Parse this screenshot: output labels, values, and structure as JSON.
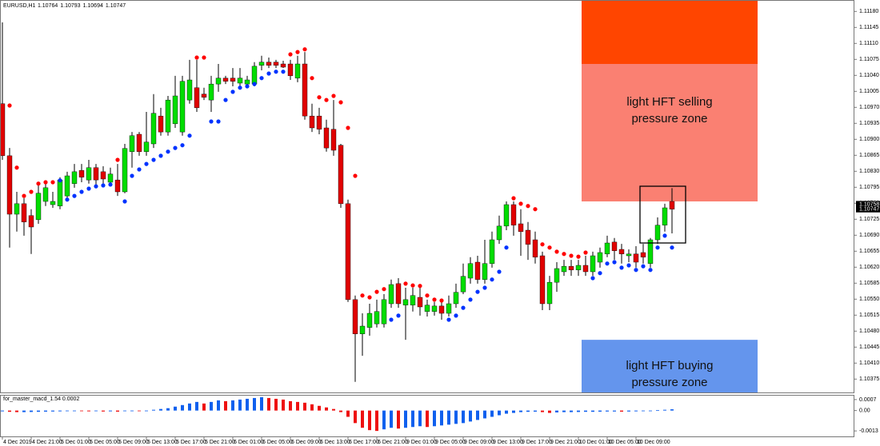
{
  "chart_data": {
    "type": "candlestick",
    "symbol": "EURUSD,H1",
    "ylim": [
      1.10344,
      1.11205
    ],
    "yticks": [
      {
        "value": 1.1118,
        "label": "1.11180"
      },
      1.11145,
      {
        "value": 1.1111,
        "label": "1.11110"
      },
      1.11075,
      {
        "value": 1.1104,
        "label": "1.11040"
      },
      1.11005,
      {
        "value": 1.1097,
        "label": "1.10970"
      },
      1.10935,
      {
        "value": 1.109,
        "label": "1.10900"
      },
      1.10865,
      {
        "value": 1.1083,
        "label": "1.10830"
      },
      1.10795,
      {
        "value": 1.1076,
        "label": "1.10760"
      },
      1.10725,
      {
        "value": 1.1069,
        "label": "1.10690"
      },
      1.10655,
      {
        "value": 1.1062,
        "label": "1.10620"
      },
      1.10585,
      {
        "value": 1.1055,
        "label": "1.10550"
      },
      1.10515,
      {
        "value": 1.1048,
        "label": "1.10480"
      },
      1.10445,
      {
        "value": 1.1041,
        "label": "1.10410"
      },
      1.10375
    ],
    "x_labels": [
      {
        "value": 0,
        "label": "4 Dec 2019"
      },
      {
        "value": 4,
        "label": "4 Dec 21:00"
      },
      {
        "value": 8,
        "label": "5 Dec 01:00"
      },
      {
        "value": 12,
        "label": "5 Dec 05:00"
      },
      {
        "value": 16,
        "label": "5 Dec 09:00"
      },
      {
        "value": 20,
        "label": "5 Dec 13:00"
      },
      {
        "value": 24,
        "label": "5 Dec 17:00"
      },
      {
        "value": 28,
        "label": "5 Dec 21:00"
      },
      {
        "value": 32,
        "label": "6 Dec 01:00"
      },
      {
        "value": 36,
        "label": "6 Dec 05:00"
      },
      {
        "value": 40,
        "label": "6 Dec 09:00"
      },
      {
        "value": 44,
        "label": "6 Dec 13:00"
      },
      {
        "value": 48,
        "label": "6 Dec 17:00"
      },
      {
        "value": 52,
        "label": "6 Dec 21:00"
      },
      {
        "value": 56,
        "label": "9 Dec 01:00"
      },
      {
        "value": 60,
        "label": "9 Dec 05:00"
      },
      {
        "value": 64,
        "label": "9 Dec 09:00"
      },
      {
        "value": 68,
        "label": "9 Dec 13:00"
      },
      {
        "value": 72,
        "label": "9 Dec 17:00"
      },
      {
        "value": 76,
        "label": "9 Dec 21:00"
      },
      {
        "value": 80,
        "label": "10 Dec 01:00"
      },
      {
        "value": 84,
        "label": "10 Dec 05:00"
      },
      {
        "value": 88,
        "label": "10 Dec 09:00"
      }
    ],
    "candles": {
      "up_color": "#00dd00",
      "down_color": "#e00000",
      "open": [
        1.10978,
        1.10864,
        1.10736,
        1.10759,
        1.10733,
        1.10724,
        1.10764,
        1.10757,
        1.10754,
        1.10776,
        1.10803,
        1.10832,
        1.10811,
        1.10838,
        1.10829,
        1.10806,
        1.10811,
        1.10785,
        1.10873,
        1.10911,
        1.10873,
        1.1089,
        1.10951,
        1.10916,
        1.10934,
        1.10916,
        1.10986,
        1.11013,
        1.10999,
        1.10986,
        1.11021,
        1.11034,
        1.11034,
        1.11023,
        1.11021,
        1.11021,
        1.11062,
        1.11069,
        1.11069,
        1.11065,
        1.11065,
        1.11034,
        1.11065,
        1.10951,
        1.10951,
        1.10925,
        1.10922,
        1.10887,
        1.10759,
        1.10549,
        1.10474,
        1.10488,
        1.10496,
        1.10496,
        1.1054,
        1.10584,
        1.10537,
        1.10537,
        1.10554,
        1.10523,
        1.10523,
        1.10535,
        1.10519,
        1.1054,
        1.10566,
        1.10596,
        1.10631,
        1.10593,
        1.10628,
        1.1068,
        1.1071,
        1.10757,
        1.10715,
        1.10701,
        1.1068,
        1.10645,
        1.1054,
        1.10587,
        1.1061,
        1.10622,
        1.10614,
        1.10624,
        1.1061,
        1.10631,
        1.10649,
        1.10675,
        1.10659,
        1.10645,
        1.10649,
        1.10652,
        1.10628,
        1.1068,
        1.10712,
        1.10764
      ],
      "high": [
        1.11156,
        1.10881,
        1.10785,
        1.10771,
        1.10747,
        1.10799,
        1.10806,
        1.10785,
        1.10817,
        1.10829,
        1.10846,
        1.10846,
        1.10855,
        1.10846,
        1.10841,
        1.10838,
        1.10846,
        1.1089,
        1.10916,
        1.10916,
        1.1096,
        1.10999,
        1.10969,
        1.10995,
        1.11039,
        1.11039,
        1.11074,
        1.11074,
        1.11013,
        1.11039,
        1.11065,
        1.11039,
        1.11056,
        1.11056,
        1.11039,
        1.11069,
        1.11083,
        1.11079,
        1.11074,
        1.11072,
        1.11074,
        1.11083,
        1.11091,
        1.10978,
        1.10969,
        1.10943,
        1.10986,
        1.1089,
        1.10768,
        1.10558,
        1.10519,
        1.1054,
        1.10549,
        1.10561,
        1.10593,
        1.10596,
        1.10575,
        1.10575,
        1.10575,
        1.10549,
        1.10544,
        1.10544,
        1.10558,
        1.10584,
        1.10628,
        1.10642,
        1.10645,
        1.1068,
        1.10698,
        1.10733,
        1.10764,
        1.10764,
        1.10747,
        1.10719,
        1.10698,
        1.10654,
        1.10601,
        1.10631,
        1.10636,
        1.10636,
        1.10636,
        1.10645,
        1.10654,
        1.10663,
        1.10689,
        1.10684,
        1.10671,
        1.10659,
        1.10666,
        1.10671,
        1.10684,
        1.10729,
        1.10759,
        1.10793
      ],
      "low": [
        1.10855,
        1.10663,
        1.10698,
        1.10689,
        1.10649,
        1.10715,
        1.10754,
        1.1075,
        1.10747,
        1.10768,
        1.10794,
        1.10806,
        1.10803,
        1.10799,
        1.10803,
        1.10799,
        1.10776,
        1.10782,
        1.10838,
        1.10864,
        1.10864,
        1.10881,
        1.10908,
        1.10908,
        1.10925,
        1.10908,
        1.10978,
        1.1096,
        1.10986,
        1.1096,
        1.11004,
        1.11021,
        1.11016,
        1.11016,
        1.11016,
        1.11016,
        1.11051,
        1.11056,
        1.11056,
        1.11056,
        1.1103,
        1.11025,
        1.10943,
        1.10916,
        1.10911,
        1.10873,
        1.10864,
        1.1075,
        1.10544,
        1.10369,
        1.10426,
        1.1047,
        1.10488,
        1.10488,
        1.10531,
        1.10531,
        1.10461,
        1.10523,
        1.10514,
        1.10512,
        1.10514,
        1.10505,
        1.10512,
        1.10531,
        1.10561,
        1.10584,
        1.10584,
        1.10584,
        1.10619,
        1.10671,
        1.10701,
        1.10689,
        1.10645,
        1.10636,
        1.10628,
        1.10526,
        1.10526,
        1.10566,
        1.10601,
        1.10601,
        1.10601,
        1.10601,
        1.10601,
        1.10619,
        1.10642,
        1.10636,
        1.10628,
        1.10631,
        1.10619,
        1.10628,
        1.10619,
        1.10671,
        1.10698,
        1.10694
      ],
      "close": [
        1.10864,
        1.10736,
        1.10759,
        1.10719,
        1.10708,
        1.10782,
        1.10794,
        1.10764,
        1.10811,
        1.1082,
        1.10829,
        1.10817,
        1.10838,
        1.10811,
        1.10813,
        1.10824,
        1.10785,
        1.1088,
        1.10908,
        1.10873,
        1.10894,
        1.10957,
        1.10916,
        1.10986,
        1.10995,
        1.11027,
        1.1103,
        1.10969,
        1.10992,
        1.11021,
        1.11034,
        1.11027,
        1.11027,
        1.11034,
        1.1103,
        1.1106,
        1.11069,
        1.11062,
        1.11062,
        1.11058,
        1.11039,
        1.11065,
        1.10951,
        1.10925,
        1.10922,
        1.10881,
        1.10876,
        1.10759,
        1.10549,
        1.10474,
        1.10491,
        1.10519,
        1.10523,
        1.10549,
        1.10582,
        1.1054,
        1.10549,
        1.10558,
        1.10533,
        1.10537,
        1.10535,
        1.10519,
        1.1054,
        1.10565,
        1.106,
        1.10628,
        1.10593,
        1.10628,
        1.1068,
        1.1071,
        1.10757,
        1.10712,
        1.10698,
        1.1067,
        1.10642,
        1.1054,
        1.10587,
        1.10617,
        1.10622,
        1.10614,
        1.10624,
        1.1061,
        1.10645,
        1.10652,
        1.10673,
        1.10656,
        1.10649,
        1.10649,
        1.10631,
        1.10642,
        1.1068,
        1.10712,
        1.1075,
        1.10747
      ]
    },
    "sar": {
      "above_color": "#ff0000",
      "below_color": "#0033ff",
      "values": [
        null,
        1.10974,
        1.10838,
        1.10776,
        1.10785,
        1.10803,
        1.10806,
        1.10806,
        1.1081,
        1.10768,
        1.10776,
        1.10785,
        1.10792,
        1.10797,
        1.10799,
        1.10801,
        1.10855,
        1.10764,
        1.1082,
        1.10834,
        1.10846,
        1.10855,
        1.10864,
        1.10873,
        1.10881,
        1.10887,
        1.10908,
        1.11079,
        1.11079,
        1.10939,
        1.10939,
        1.10986,
        1.11004,
        1.11013,
        1.11016,
        1.11021,
        1.11034,
        1.11044,
        1.11048,
        1.11048,
        1.11086,
        1.11091,
        1.11097,
        1.11034,
        1.10992,
        1.10986,
        1.10995,
        1.10981,
        1.10925,
        1.1082,
        1.10558,
        1.10554,
        1.10566,
        1.10572,
        1.10505,
        1.10514,
        1.10584,
        1.1058,
        1.10579,
        1.10558,
        1.10549,
        1.10547,
        1.10505,
        1.10514,
        1.10531,
        1.10549,
        1.10566,
        1.10575,
        1.10593,
        1.1061,
        1.10663,
        1.10771,
        1.10759,
        1.10754,
        1.10747,
        1.1067,
        1.10663,
        1.10654,
        1.10649,
        1.10645,
        1.10643,
        1.10652,
        1.10596,
        1.10607,
        1.10628,
        1.10631,
        1.10619,
        1.10624,
        1.10614,
        1.10622,
        1.10614,
        1.10663,
        1.10689,
        1.10663
      ]
    },
    "price_markers": [
      1.10758,
      1.10747
    ],
    "zones": [
      {
        "lines": [
          "light HFT selling",
          "pressure zone"
        ],
        "from": 1.10764,
        "to": 1.11065,
        "color": "#fa8072"
      },
      {
        "from": 1.11065,
        "to": 1.11205,
        "color": "#ff4500"
      },
      {
        "lines": [
          "light HFT buying",
          "pressure zone"
        ],
        "from": 1.10344,
        "to": 1.10461,
        "color": "#6495ed"
      }
    ],
    "macd": {
      "title": "for_master_macd_1.54 0.0002",
      "ylim": [
        -0.00165,
        0.0009
      ],
      "yticks": [
        0.0007,
        {
          "value": 0,
          "label": "0.00"
        },
        -0.0013
      ],
      "up_color": "#1060ee",
      "down_color": "#ee1111",
      "values": [
        -5e-05,
        -8e-05,
        -0.0001,
        -0.0001,
        -9e-05,
        -8e-05,
        -7e-05,
        -6e-05,
        -5e-05,
        -4e-05,
        -3e-05,
        -4e-05,
        -5e-05,
        -4e-05,
        -6e-05,
        -5e-05,
        -7e-05,
        -4e-05,
        -2e-05,
        -3e-05,
        -1e-05,
        5e-05,
        0.0001,
        0.00015,
        0.00025,
        0.00035,
        0.00045,
        0.00055,
        0.00045,
        0.00055,
        0.00065,
        0.0006,
        0.00065,
        0.0007,
        0.00075,
        0.0008,
        0.00085,
        0.0008,
        0.00075,
        0.0007,
        0.0006,
        0.00055,
        0.0005,
        0.0004,
        0.0003,
        0.0002,
        0.0001,
        -0.0001,
        -0.0004,
        -0.0008,
        -0.0011,
        -0.00125,
        -0.0013,
        -0.0012,
        -0.0011,
        -0.00115,
        -0.0011,
        -0.00105,
        -0.001,
        -0.00105,
        -0.001,
        -0.00095,
        -0.0009,
        -0.00085,
        -0.0008,
        -0.0007,
        -0.0006,
        -0.0005,
        -0.0004,
        -0.0003,
        -0.0002,
        -0.00015,
        -0.0001,
        -8e-05,
        -7e-05,
        -0.0001,
        -0.00015,
        -0.00012,
        -0.0001,
        -0.0001,
        -9e-05,
        -8e-05,
        -8e-05,
        -7e-05,
        -6e-05,
        -6e-05,
        -7e-05,
        -6e-05,
        -5e-05,
        -4e-05,
        -3e-05,
        2e-05,
        5e-05,
        8e-05
      ]
    }
  }
}
